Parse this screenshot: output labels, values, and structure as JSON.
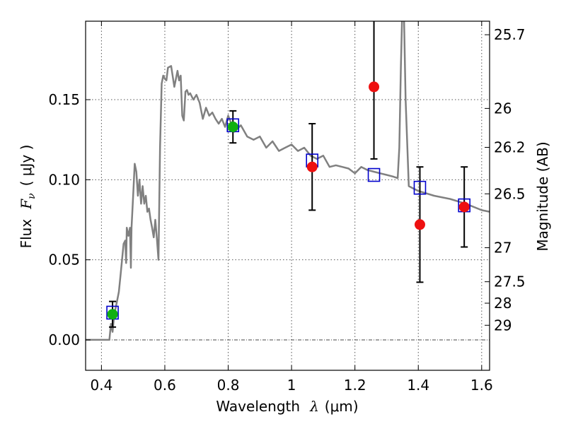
{
  "chart_data": {
    "type": "scatter",
    "title": "",
    "xlabel": "Wavelength",
    "xlabel_symbol": "λ",
    "xlabel_unit": "(μm)",
    "ylabel": "Flux",
    "ylabel_symbol": "F",
    "ylabel_subscript": "ν",
    "ylabel_unit": "( μJy )",
    "y2label": "Magnitude (AB)",
    "xlim": [
      0.35,
      1.625
    ],
    "ylim": [
      -0.019,
      0.199
    ],
    "grid": true,
    "xticks": [
      {
        "value": 0.4,
        "label": "0.4"
      },
      {
        "value": 0.6,
        "label": "0.6"
      },
      {
        "value": 0.8,
        "label": "0.8"
      },
      {
        "value": 1.0,
        "label": "1"
      },
      {
        "value": 1.2,
        "label": "1.2"
      },
      {
        "value": 1.4,
        "label": "1.4"
      },
      {
        "value": 1.6,
        "label": "1.6"
      }
    ],
    "yticks": [
      {
        "value": 0.0,
        "label": "0.00"
      },
      {
        "value": 0.05,
        "label": "0.05"
      },
      {
        "value": 0.1,
        "label": "0.10"
      },
      {
        "value": 0.15,
        "label": "0.15"
      }
    ],
    "mag_ticks": [
      {
        "value": 25.7,
        "label": "25.7"
      },
      {
        "value": 26,
        "label": "26"
      },
      {
        "value": 26.2,
        "label": "26.2"
      },
      {
        "value": 26.5,
        "label": "26.5"
      },
      {
        "value": 27,
        "label": "27"
      },
      {
        "value": 27.5,
        "label": "27.5"
      },
      {
        "value": 28,
        "label": "28"
      },
      {
        "value": 29,
        "label": "29"
      }
    ],
    "colors": {
      "model": "#808080",
      "model_photometry": "#0000cc",
      "detections": "#10b010",
      "measurements": "#ee1010",
      "errorbar": "#000000",
      "grid": "#555555"
    },
    "series": [
      {
        "kind": "line",
        "x": [
          0.35,
          0.425,
          0.43,
          0.435,
          0.44,
          0.445,
          0.45,
          0.455,
          0.46,
          0.465,
          0.47,
          0.475,
          0.478,
          0.48,
          0.485,
          0.49,
          0.493,
          0.495,
          0.5,
          0.505,
          0.51,
          0.515,
          0.52,
          0.525,
          0.53,
          0.535,
          0.54,
          0.545,
          0.55,
          0.555,
          0.56,
          0.565,
          0.57,
          0.575,
          0.58,
          0.585,
          0.59,
          0.595,
          0.6,
          0.605,
          0.61,
          0.62,
          0.63,
          0.64,
          0.645,
          0.65,
          0.655,
          0.66,
          0.665,
          0.67,
          0.675,
          0.68,
          0.69,
          0.7,
          0.71,
          0.72,
          0.73,
          0.74,
          0.75,
          0.76,
          0.77,
          0.78,
          0.79,
          0.8,
          0.82,
          0.84,
          0.86,
          0.88,
          0.9,
          0.92,
          0.94,
          0.96,
          0.98,
          1.0,
          1.02,
          1.04,
          1.06,
          1.08,
          1.1,
          1.12,
          1.14,
          1.16,
          1.18,
          1.2,
          1.22,
          1.24,
          1.26,
          1.28,
          1.3,
          1.32,
          1.335,
          1.34,
          1.345,
          1.35,
          1.355,
          1.36,
          1.37,
          1.38,
          1.4,
          1.45,
          1.5,
          1.55,
          1.6,
          1.625
        ],
        "y": [
          0.0,
          0.0,
          0.01,
          0.005,
          0.015,
          0.02,
          0.025,
          0.03,
          0.04,
          0.05,
          0.06,
          0.062,
          0.048,
          0.07,
          0.065,
          0.07,
          0.045,
          0.07,
          0.09,
          0.11,
          0.105,
          0.09,
          0.1,
          0.085,
          0.096,
          0.085,
          0.09,
          0.08,
          0.082,
          0.075,
          0.07,
          0.064,
          0.075,
          0.063,
          0.05,
          0.12,
          0.16,
          0.165,
          0.163,
          0.162,
          0.17,
          0.171,
          0.158,
          0.168,
          0.162,
          0.165,
          0.14,
          0.137,
          0.155,
          0.156,
          0.153,
          0.154,
          0.15,
          0.153,
          0.148,
          0.138,
          0.145,
          0.14,
          0.142,
          0.138,
          0.135,
          0.138,
          0.133,
          0.14,
          0.13,
          0.134,
          0.127,
          0.125,
          0.127,
          0.12,
          0.124,
          0.118,
          0.12,
          0.122,
          0.118,
          0.12,
          0.115,
          0.113,
          0.115,
          0.108,
          0.109,
          0.108,
          0.107,
          0.104,
          0.108,
          0.106,
          0.105,
          0.104,
          0.103,
          0.102,
          0.101,
          0.12,
          0.17,
          0.21,
          0.2,
          0.15,
          0.096,
          0.095,
          0.093,
          0.09,
          0.088,
          0.085,
          0.081,
          0.08
        ]
      },
      {
        "kind": "open-square",
        "x": [
          0.435,
          0.815,
          1.065,
          1.26,
          1.405,
          1.545
        ],
        "y": [
          0.017,
          0.134,
          0.112,
          0.103,
          0.095,
          0.084
        ]
      },
      {
        "kind": "filled-circle",
        "x": [
          0.435,
          0.815
        ],
        "y": [
          0.016,
          0.133
        ],
        "yerr": [
          0.008,
          0.01
        ]
      },
      {
        "kind": "filled-circle",
        "x": [
          1.065,
          1.26,
          1.405,
          1.545
        ],
        "y": [
          0.108,
          0.158,
          0.072,
          0.083
        ],
        "yerr": [
          0.027,
          0.045,
          0.036,
          0.025
        ]
      }
    ]
  }
}
